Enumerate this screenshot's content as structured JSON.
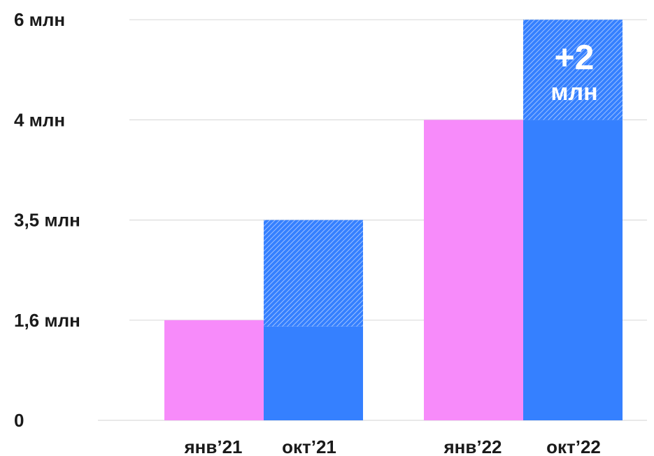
{
  "chart_data": {
    "type": "bar",
    "categories": [
      "янв’21",
      "окт’21",
      "янв’22",
      "окт’22"
    ],
    "y_ticks": [
      "0",
      "1,6 млн",
      "3,5 млн",
      "4 млн",
      "6 млн"
    ],
    "values": [
      1.6,
      3.5,
      4,
      6
    ],
    "solid_part": [
      1.6,
      1.5,
      4,
      4
    ],
    "hatched_increment": [
      0,
      2,
      0,
      2
    ],
    "bar_colors": [
      "#f78bfa",
      "#3580ff",
      "#f78bfa",
      "#3580ff"
    ],
    "annotation": {
      "main": "+2",
      "unit": "млн"
    },
    "grid": true,
    "legend": "none",
    "title": "",
    "xlabel": "",
    "ylabel": ""
  },
  "colors": {
    "pink": "#f78bfa",
    "blue": "#3580ff",
    "grid": "#dcdcdc",
    "text": "#1a1a1a"
  }
}
